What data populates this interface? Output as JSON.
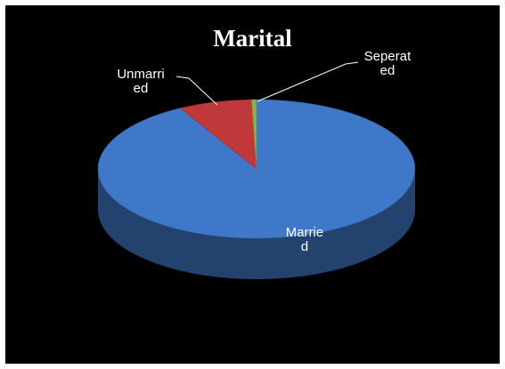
{
  "chart_data": {
    "type": "pie3d",
    "title": "Marital",
    "categories": [
      "Married",
      "Unmarried",
      "Seperated"
    ],
    "values": [
      92,
      7.5,
      0.5
    ],
    "colors": [
      "#3f78c8",
      "#c0393a",
      "#8fb04a"
    ]
  }
}
